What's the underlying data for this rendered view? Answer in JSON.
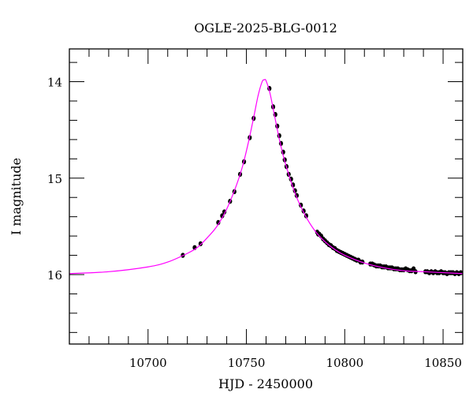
{
  "chart_data": {
    "type": "scatter",
    "title": "OGLE-2025-BLG-0012",
    "xlabel": "HJD - 2450000",
    "ylabel": "I magnitude",
    "xlim": [
      10660,
      10860
    ],
    "ylim": [
      16.72,
      13.66
    ],
    "y_inverted": true,
    "x_ticks": [
      10700,
      10750,
      10800,
      10850
    ],
    "x_tick_labels": [
      "10700",
      "10750",
      "10800",
      "10850"
    ],
    "x_minor_step": 10,
    "y_ticks": [
      14,
      15,
      16
    ],
    "y_tick_labels": [
      "14",
      "15",
      "16"
    ],
    "y_minor_step": 0.2,
    "grid": false,
    "colors": {
      "points": "#000000",
      "model": "#ff00ff"
    },
    "series": [
      {
        "type": "scatter",
        "points": [
          [
            10717.7,
            15.8
          ],
          [
            10723.7,
            15.72
          ],
          [
            10726.7,
            15.68
          ],
          [
            10735.7,
            15.46
          ],
          [
            10737.7,
            15.39
          ],
          [
            10738.8,
            15.35
          ],
          [
            10741.7,
            15.24
          ],
          [
            10743.9,
            15.14
          ],
          [
            10746.8,
            14.96
          ],
          [
            10748.8,
            14.83
          ],
          [
            10751.7,
            14.58
          ],
          [
            10753.7,
            14.38
          ],
          [
            10761.7,
            14.07
          ],
          [
            10763.6,
            14.26
          ],
          [
            10764.7,
            14.34
          ],
          [
            10765.7,
            14.46
          ],
          [
            10766.7,
            14.56
          ],
          [
            10767.6,
            14.64
          ],
          [
            10768.7,
            14.73
          ],
          [
            10769.5,
            14.81
          ],
          [
            10770.4,
            14.88
          ],
          [
            10771.5,
            14.96
          ],
          [
            10772.7,
            15.01
          ],
          [
            10773.7,
            15.07
          ],
          [
            10774.7,
            15.13
          ],
          [
            10775.6,
            15.18
          ],
          [
            10777.7,
            15.28
          ],
          [
            10779.1,
            15.34
          ],
          [
            10780.4,
            15.39
          ],
          [
            10786,
            15.56
          ],
          [
            10786.5,
            15.58
          ],
          [
            10787,
            15.58
          ],
          [
            10788,
            15.6
          ],
          [
            10789,
            15.63
          ],
          [
            10790,
            15.65
          ],
          [
            10791,
            15.67
          ],
          [
            10792,
            15.69
          ],
          [
            10793,
            15.7
          ],
          [
            10794,
            15.72
          ],
          [
            10795,
            15.73
          ],
          [
            10796,
            15.75
          ],
          [
            10797,
            15.76
          ],
          [
            10798,
            15.77
          ],
          [
            10799,
            15.78
          ],
          [
            10800,
            15.79
          ],
          [
            10801,
            15.8
          ],
          [
            10802,
            15.81
          ],
          [
            10803,
            15.82
          ],
          [
            10804,
            15.83
          ],
          [
            10805,
            15.84
          ],
          [
            10806,
            15.85
          ],
          [
            10807,
            15.85
          ],
          [
            10808,
            15.87
          ],
          [
            10809,
            15.87
          ],
          [
            10813,
            15.89
          ],
          [
            10814,
            15.89
          ],
          [
            10815,
            15.9
          ],
          [
            10816,
            15.91
          ],
          [
            10817,
            15.91
          ],
          [
            10818,
            15.91
          ],
          [
            10819,
            15.92
          ],
          [
            10820,
            15.92
          ],
          [
            10821,
            15.92
          ],
          [
            10822,
            15.93
          ],
          [
            10823,
            15.93
          ],
          [
            10824,
            15.93
          ],
          [
            10825,
            15.94
          ],
          [
            10826,
            15.94
          ],
          [
            10827,
            15.94
          ],
          [
            10828,
            15.95
          ],
          [
            10829,
            15.95
          ],
          [
            10830,
            15.95
          ],
          [
            10831,
            15.94
          ],
          [
            10832,
            15.95
          ],
          [
            10833,
            15.96
          ],
          [
            10834,
            15.96
          ],
          [
            10835,
            15.94
          ],
          [
            10836,
            15.97
          ],
          [
            10841,
            15.97
          ],
          [
            10842,
            15.97
          ],
          [
            10843,
            15.98
          ],
          [
            10844,
            15.97
          ],
          [
            10845,
            15.98
          ],
          [
            10846,
            15.97
          ],
          [
            10847,
            15.98
          ],
          [
            10848,
            15.98
          ],
          [
            10849,
            15.97
          ],
          [
            10850,
            15.98
          ],
          [
            10851,
            15.98
          ],
          [
            10852,
            15.99
          ],
          [
            10853,
            15.98
          ],
          [
            10854,
            15.98
          ],
          [
            10855,
            15.98
          ],
          [
            10856,
            15.99
          ],
          [
            10857,
            15.98
          ],
          [
            10858,
            15.99
          ],
          [
            10859,
            15.98
          ]
        ]
      },
      {
        "type": "line",
        "points": [
          [
            10660,
            15.99
          ],
          [
            10680,
            15.97
          ],
          [
            10700,
            15.92
          ],
          [
            10710,
            15.87
          ],
          [
            10720,
            15.78
          ],
          [
            10725,
            15.72
          ],
          [
            10730,
            15.62
          ],
          [
            10735,
            15.5
          ],
          [
            10740,
            15.32
          ],
          [
            10745,
            15.07
          ],
          [
            10748,
            14.88
          ],
          [
            10751,
            14.63
          ],
          [
            10754,
            14.34
          ],
          [
            10756,
            14.14
          ],
          [
            10758,
            14.0
          ],
          [
            10759.1,
            13.98
          ],
          [
            10760,
            13.99
          ],
          [
            10762,
            14.12
          ],
          [
            10764,
            14.32
          ],
          [
            10767,
            14.62
          ],
          [
            10770,
            14.86
          ],
          [
            10775,
            15.17
          ],
          [
            10780,
            15.39
          ],
          [
            10785,
            15.55
          ],
          [
            10790,
            15.66
          ],
          [
            10795,
            15.74
          ],
          [
            10800,
            15.8
          ],
          [
            10810,
            15.88
          ],
          [
            10820,
            15.93
          ],
          [
            10830,
            15.96
          ],
          [
            10840,
            15.97
          ],
          [
            10850,
            15.98
          ],
          [
            10860,
            15.99
          ]
        ]
      }
    ]
  }
}
